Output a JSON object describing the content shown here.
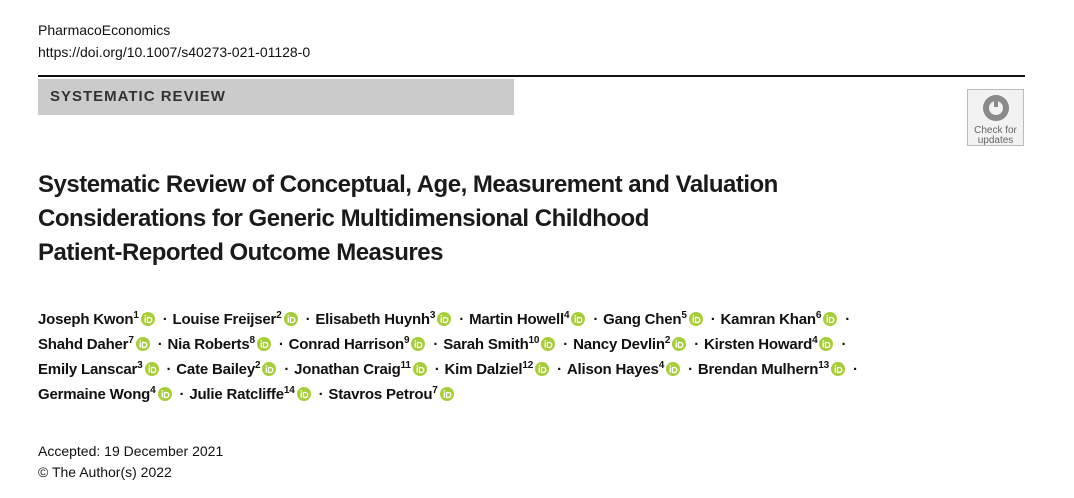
{
  "header": {
    "journal": "PharmacoEconomics",
    "doi": "https://doi.org/10.1007/s40273-021-01128-0"
  },
  "section_label": "SYSTEMATIC REVIEW",
  "badge": {
    "lines": [
      "Check for",
      "updates"
    ]
  },
  "title": {
    "lines": [
      "Systematic Review of Conceptual, Age, Measurement and Valuation",
      "Considerations for Generic Multidimensional Childhood",
      "Patient-Reported Outcome Measures"
    ]
  },
  "authors": {
    "separator": "·",
    "lines": [
      [
        {
          "name": "Joseph Kwon",
          "sup": "1"
        },
        {
          "name": "Louise Freijser",
          "sup": "2"
        },
        {
          "name": "Elisabeth Huynh",
          "sup": "3"
        },
        {
          "name": "Martin Howell",
          "sup": "4"
        },
        {
          "name": "Gang Chen",
          "sup": "5"
        },
        {
          "name": "Kamran Khan",
          "sup": "6"
        }
      ],
      [
        {
          "name": "Shahd Daher",
          "sup": "7"
        },
        {
          "name": "Nia Roberts",
          "sup": "8"
        },
        {
          "name": "Conrad Harrison",
          "sup": "9"
        },
        {
          "name": "Sarah Smith",
          "sup": "10"
        },
        {
          "name": "Nancy Devlin",
          "sup": "2"
        },
        {
          "name": "Kirsten Howard",
          "sup": "4"
        }
      ],
      [
        {
          "name": "Emily Lanscar",
          "sup": "3"
        },
        {
          "name": "Cate Bailey",
          "sup": "2"
        },
        {
          "name": "Jonathan Craig",
          "sup": "11"
        },
        {
          "name": "Kim Dalziel",
          "sup": "12"
        },
        {
          "name": "Alison Hayes",
          "sup": "4"
        },
        {
          "name": "Brendan Mulhern",
          "sup": "13"
        }
      ],
      [
        {
          "name": "Germaine Wong",
          "sup": "4"
        },
        {
          "name": "Julie Ratcliffe",
          "sup": "14"
        },
        {
          "name": "Stavros Petrou",
          "sup": "7"
        }
      ]
    ]
  },
  "footer": {
    "accepted": "Accepted: 19 December 2021",
    "copyright": "© The Author(s) 2022"
  }
}
